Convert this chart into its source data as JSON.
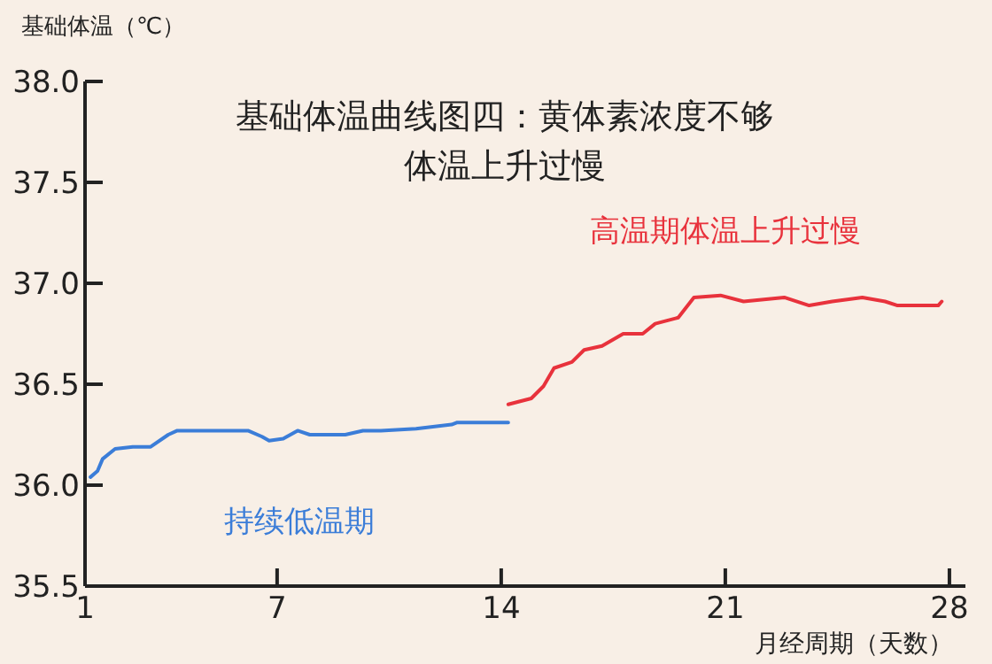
{
  "chart_data": {
    "type": "line",
    "title": "基础体温曲线图四：黄体素浓度不够体温上升过慢",
    "ylabel": "基础体温（℃）",
    "xlabel": "月经周期（天数）",
    "xlim": [
      1,
      28.5
    ],
    "xticks": [
      1,
      7,
      14,
      21,
      28
    ],
    "ylim": [
      35.5,
      38.0
    ],
    "yticks": [
      {
        "value": 35.5,
        "label": "35.5"
      },
      {
        "value": 36,
        "label": "36.0"
      },
      {
        "value": 36.5,
        "label": "36.5"
      },
      {
        "value": 37,
        "label": "37.0"
      },
      {
        "value": 37.5,
        "label": "37.5"
      },
      {
        "value": 38,
        "label": "38.0"
      }
    ],
    "grid": false,
    "legend": false,
    "marker": "none",
    "line_style": "solid",
    "series": [
      {
        "name": "持续低温期",
        "color": "#3b7dd8",
        "x": [
          1.17,
          1.39,
          1.55,
          1.94,
          2.49,
          3.05,
          3.6,
          3.88,
          4.43,
          6.09,
          6.53,
          6.75,
          7.19,
          7.64,
          8.02,
          8.58,
          9.13,
          9.68,
          10.24,
          11.34,
          12.45,
          12.61,
          14.22
        ],
        "values": [
          36.04,
          36.07,
          36.13,
          36.18,
          36.19,
          36.19,
          36.25,
          36.27,
          36.27,
          36.27,
          36.24,
          36.22,
          36.23,
          36.27,
          36.25,
          36.25,
          36.25,
          36.27,
          36.27,
          36.28,
          36.3,
          36.31,
          36.31
        ]
      },
      {
        "name": "高温期体温上升过慢",
        "color": "#e8323c",
        "x": [
          14.22,
          14.94,
          15.32,
          15.65,
          16.21,
          16.59,
          17.15,
          17.81,
          18.42,
          18.81,
          19.53,
          20.02,
          20.85,
          21.57,
          22.84,
          23.62,
          24.34,
          25.28,
          25.99,
          26.38,
          27.65,
          27.76
        ],
        "values": [
          36.4,
          36.43,
          36.49,
          36.58,
          36.61,
          36.67,
          36.69,
          36.75,
          36.75,
          36.8,
          36.83,
          36.93,
          36.94,
          36.91,
          36.93,
          36.89,
          36.91,
          36.93,
          36.91,
          36.89,
          36.89,
          36.91
        ]
      }
    ]
  }
}
